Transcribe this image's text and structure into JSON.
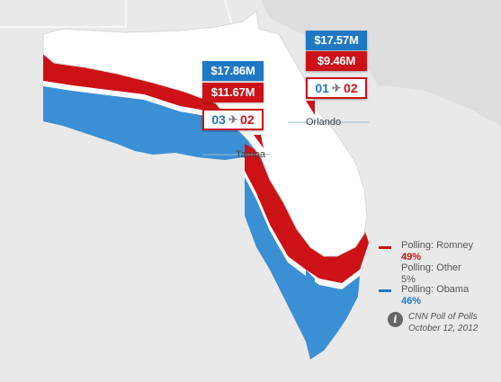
{
  "colors": {
    "romney": "#cc1216",
    "obama": "#1f78c4",
    "map_top": "#ffffff",
    "background": "#e9e9e9"
  },
  "markets": [
    {
      "city": "Tampa",
      "spend_obama": "$17.86M",
      "spend_romney": "$11.67M",
      "visits_obama": "03",
      "visits_romney": "02",
      "visit_icon": "plane-icon"
    },
    {
      "city": "Orlando",
      "spend_obama": "$17.57M",
      "spend_romney": "$9.46M",
      "visits_obama": "01",
      "visits_romney": "02",
      "visit_icon": "plane-icon"
    }
  ],
  "legend": {
    "romney": {
      "label": "Polling: Romney",
      "pct": "49%"
    },
    "other": {
      "label": "Polling: Other",
      "pct": "5%"
    },
    "obama": {
      "label": "Polling: Obama",
      "pct": "46%"
    }
  },
  "source": {
    "line1": "CNN Poll of Polls",
    "line2": "October 12, 2012",
    "icon": "info-icon"
  }
}
